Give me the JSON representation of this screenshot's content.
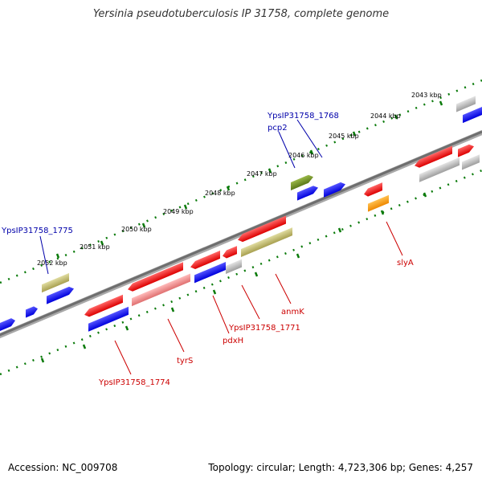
{
  "title": "Yersinia pseudotuberculosis IP 31758, complete genome",
  "footer": {
    "accession": "Accession: NC_009708",
    "info": "Topology: circular; Length: 4,723,306 bp; Genes: 4,257"
  },
  "colors": {
    "backbone": "#808080",
    "ticks": "#0a7a0a",
    "forward_label": "#0000aa",
    "reverse_label": "#cc0000",
    "red_gene": "#ee0000",
    "blue_gene": "#0000ee",
    "gray_gene": "#b0b0b0",
    "olive_gene": "#b8b060",
    "green_gene": "#6a8a20",
    "orange_gene": "#ff9900",
    "pink_gene": "#ee8888"
  },
  "ticks": [
    {
      "label": "2043 kbp"
    },
    {
      "label": "2044 kbp"
    },
    {
      "label": "2045 kbp"
    },
    {
      "label": "2046 kbp"
    },
    {
      "label": "2047 kbp"
    },
    {
      "label": "2048 kbp"
    },
    {
      "label": "2049 kbp"
    },
    {
      "label": "2050 kbp"
    },
    {
      "label": "2051 kbp"
    },
    {
      "label": "2052 kbp"
    }
  ],
  "labels": {
    "f1768": "YpsIP31758_1768",
    "pcp2": "pcp2",
    "f1775": "YpsIP31758_1775",
    "slyA": "slyA",
    "anmK": "anmK",
    "r1771": "YpsIP31758_1771",
    "pdxH": "pdxH",
    "tyrS": "tyrS",
    "r1774": "YpsIP31758_1774"
  }
}
